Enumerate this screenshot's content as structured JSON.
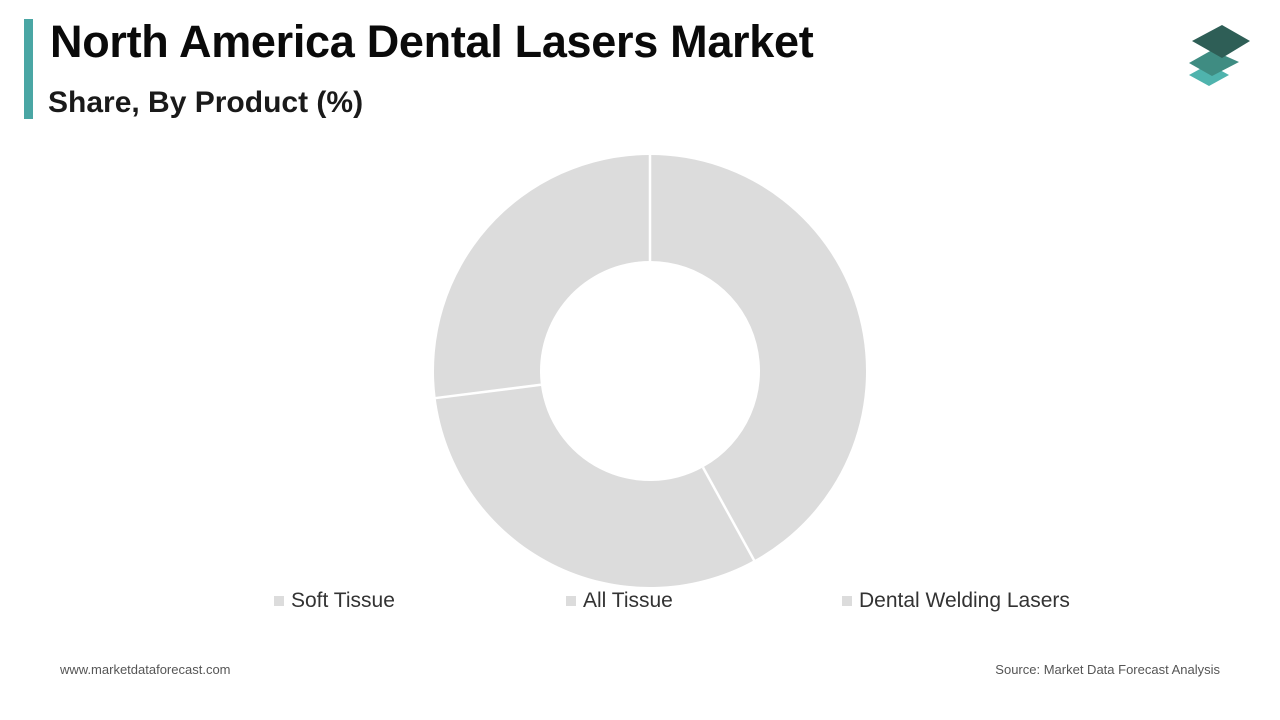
{
  "header": {
    "title": "North America Dental Lasers Market",
    "subtitle": "Share, By Product (%)",
    "accent_color": "#4aa6a4"
  },
  "logo": {
    "icon": "layered-diamonds-icon",
    "colors": [
      "#2e5e56",
      "#3f8c82",
      "#4fb3ad"
    ]
  },
  "chart_data": {
    "type": "pie",
    "title": "North America Dental Lasers Market",
    "subtitle": "Share, By Product (%)",
    "donut": true,
    "categories": [
      "Soft Tissue",
      "All Tissue",
      "Dental Welding Lasers"
    ],
    "values": [
      42,
      31,
      27
    ],
    "slice_color": "#dcdcdc",
    "separator_color": "#ffffff",
    "legend_position": "bottom"
  },
  "footer": {
    "website": "www.marketdataforecast.com",
    "source": "Source: Market Data Forecast Analysis"
  }
}
